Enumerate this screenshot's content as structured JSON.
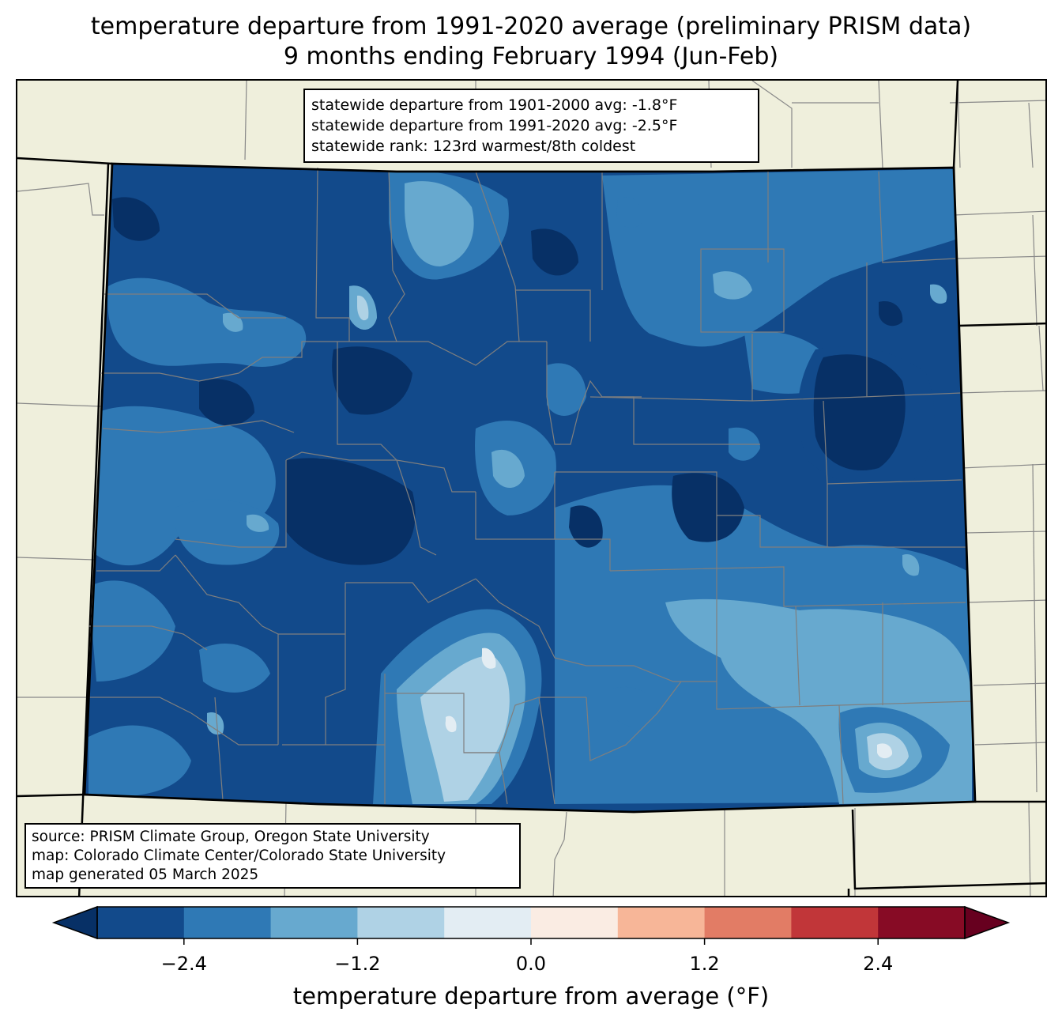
{
  "title": {
    "line1": "temperature departure from 1991-2020 average (preliminary PRISM data)",
    "line2": "9 months ending February 1994 (Jun-Feb)"
  },
  "stats": {
    "line1": "statewide departure from 1901-2000 avg: -1.8°F",
    "line2": "statewide departure from 1991-2020 avg: -2.5°F",
    "line3": "statewide rank: 123rd warmest/8th coldest"
  },
  "source": {
    "line1": "source: PRISM Climate Group, Oregon State University",
    "line2": "map: Colorado Climate Center/Colorado State University",
    "line3": "map generated 05 March 2025"
  },
  "colorbar": {
    "label": "temperature departure from average (°F)",
    "ticks": [
      "−2.4",
      "−1.2",
      "0.0",
      "1.2",
      "2.4"
    ],
    "tick_values": [
      -2.4,
      -1.2,
      0.0,
      1.2,
      2.4
    ],
    "range": [
      -3.0,
      3.0
    ],
    "step": 0.6,
    "under_color": "#073066",
    "over_color": "#67001f",
    "bin_colors": [
      "#124a8b",
      "#2f79b5",
      "#67a9cf",
      "#afd2e5",
      "#e3edf3",
      "#faece3",
      "#f7b698",
      "#e27c65",
      "#c13639",
      "#870b25"
    ]
  },
  "map_colors": {
    "land": "#efefdc",
    "deep": "#073066",
    "dark": "#124a8b",
    "mid": "#2f79b5",
    "light": "#67a9cf",
    "pale": "#afd2e5",
    "faint": "#e3edf3"
  }
}
